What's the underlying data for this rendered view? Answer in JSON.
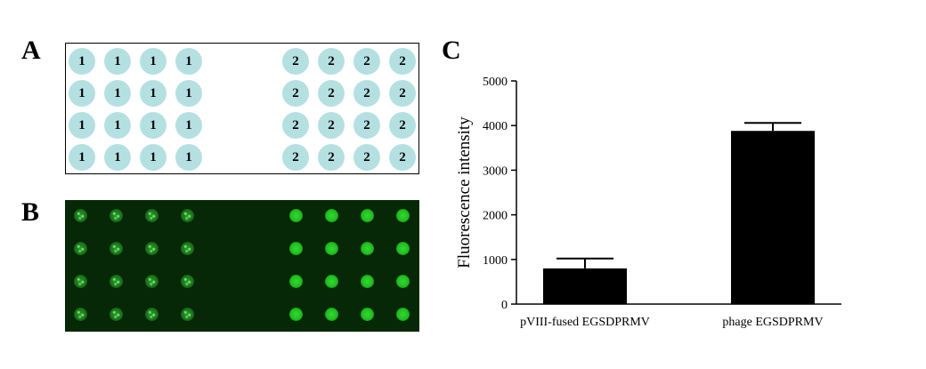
{
  "panels": {
    "a_label": "A",
    "b_label": "B",
    "c_label": "C"
  },
  "panel_a": {
    "rows": [
      [
        "1",
        "1",
        "1",
        "1",
        "2",
        "2",
        "2",
        "2"
      ],
      [
        "1",
        "1",
        "1",
        "1",
        "2",
        "2",
        "2",
        "2"
      ],
      [
        "1",
        "1",
        "1",
        "1",
        "2",
        "2",
        "2",
        "2"
      ],
      [
        "1",
        "1",
        "1",
        "1",
        "2",
        "2",
        "2",
        "2"
      ]
    ],
    "spot_color": "#b5e0e2"
  },
  "panel_b": {
    "rows": 4,
    "cols": 8,
    "background_color": "#062806",
    "spot_color": "#1fbf1f"
  },
  "chart_data": {
    "type": "bar",
    "categories": [
      "pVIII-fused EGSDPRMV",
      "phage EGSDPRMV"
    ],
    "values": [
      800,
      3880
    ],
    "errors": [
      220,
      180
    ],
    "title": "",
    "xlabel": "",
    "ylabel": "Fluorescence intensity",
    "ylim": [
      0,
      5000
    ],
    "yticks": [
      "0",
      "1000",
      "2000",
      "3000",
      "4000",
      "5000"
    ],
    "bar_color": "#000000",
    "grid": false
  }
}
